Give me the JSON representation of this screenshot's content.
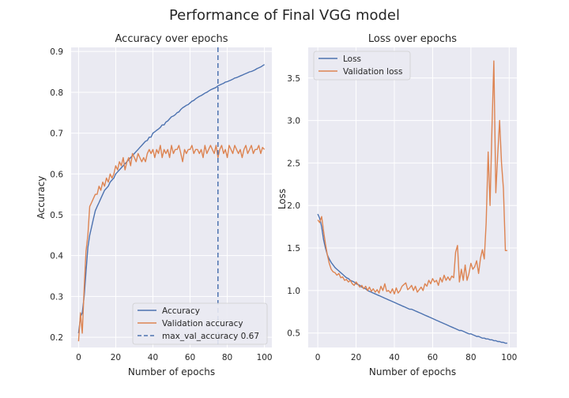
{
  "figure": {
    "title": "Performance of Final VGG model"
  },
  "colors": {
    "axes_bg": "#eaeaf2",
    "grid": "#ffffff",
    "blue": "#4c72b0",
    "orange": "#dd8452",
    "text": "#262626"
  },
  "chart_data": [
    {
      "type": "line",
      "title": "Accuracy over epochs",
      "xlabel": "Number of epochs",
      "ylabel": "Accuracy",
      "xlim": [
        -4,
        104
      ],
      "ylim": [
        0.175,
        0.91
      ],
      "xticks": [
        0,
        20,
        40,
        60,
        80,
        100
      ],
      "yticks": [
        0.2,
        0.3,
        0.4,
        0.5,
        0.6,
        0.7,
        0.8,
        0.9
      ],
      "ytick_labels": [
        "0.2",
        "0.3",
        "0.4",
        "0.5",
        "0.6",
        "0.7",
        "0.8",
        "0.9"
      ],
      "grid": true,
      "legend_position": "lower-right",
      "series": [
        {
          "name": "Accuracy",
          "color": "#4c72b0",
          "x": [
            0,
            1,
            2,
            3,
            4,
            5,
            6,
            7,
            8,
            9,
            10,
            11,
            12,
            13,
            14,
            15,
            16,
            17,
            18,
            19,
            20,
            21,
            22,
            23,
            24,
            25,
            26,
            27,
            28,
            29,
            30,
            31,
            32,
            33,
            34,
            35,
            36,
            37,
            38,
            39,
            40,
            41,
            42,
            43,
            44,
            45,
            46,
            47,
            48,
            49,
            50,
            51,
            52,
            53,
            54,
            55,
            56,
            57,
            58,
            59,
            60,
            61,
            62,
            63,
            64,
            65,
            66,
            67,
            68,
            69,
            70,
            71,
            72,
            73,
            74,
            75,
            76,
            77,
            78,
            79,
            80,
            81,
            82,
            83,
            84,
            85,
            86,
            87,
            88,
            89,
            90,
            91,
            92,
            93,
            94,
            95,
            96,
            97,
            98,
            99,
            100
          ],
          "y": [
            0.21,
            0.25,
            0.26,
            0.3,
            0.36,
            0.42,
            0.45,
            0.47,
            0.49,
            0.51,
            0.52,
            0.53,
            0.54,
            0.55,
            0.56,
            0.565,
            0.57,
            0.58,
            0.585,
            0.59,
            0.6,
            0.605,
            0.61,
            0.615,
            0.62,
            0.625,
            0.63,
            0.635,
            0.64,
            0.645,
            0.65,
            0.655,
            0.66,
            0.665,
            0.67,
            0.675,
            0.68,
            0.682,
            0.69,
            0.69,
            0.7,
            0.703,
            0.707,
            0.71,
            0.714,
            0.72,
            0.72,
            0.727,
            0.73,
            0.735,
            0.74,
            0.742,
            0.745,
            0.75,
            0.752,
            0.758,
            0.762,
            0.765,
            0.768,
            0.77,
            0.774,
            0.778,
            0.78,
            0.784,
            0.787,
            0.79,
            0.792,
            0.795,
            0.798,
            0.8,
            0.803,
            0.806,
            0.808,
            0.81,
            0.812,
            0.816,
            0.818,
            0.82,
            0.822,
            0.825,
            0.826,
            0.828,
            0.83,
            0.832,
            0.835,
            0.836,
            0.838,
            0.84,
            0.842,
            0.844,
            0.846,
            0.848,
            0.85,
            0.851,
            0.853,
            0.855,
            0.858,
            0.86,
            0.862,
            0.865,
            0.868
          ]
        },
        {
          "name": "Validation accuracy",
          "color": "#dd8452",
          "x": [
            0,
            1,
            2,
            3,
            4,
            5,
            6,
            7,
            8,
            9,
            10,
            11,
            12,
            13,
            14,
            15,
            16,
            17,
            18,
            19,
            20,
            21,
            22,
            23,
            24,
            25,
            26,
            27,
            28,
            29,
            30,
            31,
            32,
            33,
            34,
            35,
            36,
            37,
            38,
            39,
            40,
            41,
            42,
            43,
            44,
            45,
            46,
            47,
            48,
            49,
            50,
            51,
            52,
            53,
            54,
            55,
            56,
            57,
            58,
            59,
            60,
            61,
            62,
            63,
            64,
            65,
            66,
            67,
            68,
            69,
            70,
            71,
            72,
            73,
            74,
            75,
            76,
            77,
            78,
            79,
            80,
            81,
            82,
            83,
            84,
            85,
            86,
            87,
            88,
            89,
            90,
            91,
            92,
            93,
            94,
            95,
            96,
            97,
            98,
            99,
            100
          ],
          "y": [
            0.19,
            0.26,
            0.21,
            0.32,
            0.41,
            0.45,
            0.52,
            0.53,
            0.54,
            0.55,
            0.55,
            0.57,
            0.56,
            0.58,
            0.57,
            0.59,
            0.58,
            0.6,
            0.59,
            0.6,
            0.62,
            0.61,
            0.63,
            0.62,
            0.64,
            0.61,
            0.63,
            0.64,
            0.62,
            0.65,
            0.64,
            0.63,
            0.65,
            0.64,
            0.63,
            0.64,
            0.63,
            0.65,
            0.66,
            0.65,
            0.66,
            0.64,
            0.66,
            0.65,
            0.67,
            0.64,
            0.66,
            0.65,
            0.66,
            0.64,
            0.67,
            0.65,
            0.66,
            0.66,
            0.67,
            0.65,
            0.63,
            0.66,
            0.65,
            0.66,
            0.66,
            0.67,
            0.65,
            0.66,
            0.66,
            0.65,
            0.66,
            0.64,
            0.67,
            0.65,
            0.66,
            0.67,
            0.66,
            0.65,
            0.67,
            0.64,
            0.66,
            0.67,
            0.65,
            0.66,
            0.64,
            0.67,
            0.66,
            0.65,
            0.67,
            0.66,
            0.65,
            0.66,
            0.64,
            0.66,
            0.67,
            0.65,
            0.66,
            0.67,
            0.65,
            0.66,
            0.66,
            0.67,
            0.65,
            0.665,
            0.66
          ]
        }
      ],
      "vline": {
        "name": "max_val_accuracy 0.67",
        "x": 75,
        "color": "#4c72b0",
        "style": "dashed"
      }
    },
    {
      "type": "line",
      "title": "Loss over epochs",
      "xlabel": "Number of epochs",
      "ylabel": "Loss",
      "xlim": [
        -5,
        104
      ],
      "ylim": [
        0.33,
        3.86
      ],
      "xticks": [
        0,
        20,
        40,
        60,
        80,
        100
      ],
      "yticks": [
        0.5,
        1.0,
        1.5,
        2.0,
        2.5,
        3.0,
        3.5
      ],
      "ytick_labels": [
        "0.5",
        "1.0",
        "1.5",
        "2.0",
        "2.5",
        "3.0",
        "3.5"
      ],
      "grid": true,
      "legend_position": "upper-left",
      "series": [
        {
          "name": "Loss",
          "color": "#4c72b0",
          "x": [
            0,
            1,
            2,
            3,
            4,
            5,
            6,
            7,
            8,
            9,
            10,
            11,
            12,
            13,
            14,
            15,
            16,
            17,
            18,
            19,
            20,
            21,
            22,
            23,
            24,
            25,
            26,
            27,
            28,
            29,
            30,
            31,
            32,
            33,
            34,
            35,
            36,
            37,
            38,
            39,
            40,
            41,
            42,
            43,
            44,
            45,
            46,
            47,
            48,
            49,
            50,
            51,
            52,
            53,
            54,
            55,
            56,
            57,
            58,
            59,
            60,
            61,
            62,
            63,
            64,
            65,
            66,
            67,
            68,
            69,
            70,
            71,
            72,
            73,
            74,
            75,
            76,
            77,
            78,
            79,
            80,
            81,
            82,
            83,
            84,
            85,
            86,
            87,
            88,
            89,
            90,
            91,
            92,
            93,
            94,
            95,
            96,
            97,
            98,
            99
          ],
          "y": [
            1.9,
            1.85,
            1.75,
            1.6,
            1.5,
            1.42,
            1.37,
            1.33,
            1.3,
            1.27,
            1.25,
            1.23,
            1.21,
            1.19,
            1.17,
            1.15,
            1.14,
            1.12,
            1.11,
            1.1,
            1.08,
            1.07,
            1.06,
            1.04,
            1.03,
            1.02,
            1.0,
            0.99,
            0.98,
            0.97,
            0.96,
            0.95,
            0.94,
            0.93,
            0.92,
            0.91,
            0.9,
            0.89,
            0.88,
            0.87,
            0.86,
            0.85,
            0.84,
            0.83,
            0.82,
            0.81,
            0.8,
            0.79,
            0.78,
            0.78,
            0.77,
            0.76,
            0.75,
            0.74,
            0.73,
            0.72,
            0.71,
            0.7,
            0.69,
            0.68,
            0.67,
            0.66,
            0.65,
            0.64,
            0.63,
            0.62,
            0.61,
            0.6,
            0.59,
            0.58,
            0.57,
            0.56,
            0.55,
            0.54,
            0.53,
            0.53,
            0.52,
            0.51,
            0.5,
            0.49,
            0.49,
            0.48,
            0.47,
            0.46,
            0.46,
            0.45,
            0.44,
            0.44,
            0.43,
            0.43,
            0.42,
            0.42,
            0.41,
            0.41,
            0.4,
            0.4,
            0.39,
            0.39,
            0.38,
            0.38
          ]
        },
        {
          "name": "Validation loss",
          "color": "#dd8452",
          "x": [
            0,
            1,
            2,
            3,
            4,
            5,
            6,
            7,
            8,
            9,
            10,
            11,
            12,
            13,
            14,
            15,
            16,
            17,
            18,
            19,
            20,
            21,
            22,
            23,
            24,
            25,
            26,
            27,
            28,
            29,
            30,
            31,
            32,
            33,
            34,
            35,
            36,
            37,
            38,
            39,
            40,
            41,
            42,
            43,
            44,
            45,
            46,
            47,
            48,
            49,
            50,
            51,
            52,
            53,
            54,
            55,
            56,
            57,
            58,
            59,
            60,
            61,
            62,
            63,
            64,
            65,
            66,
            67,
            68,
            69,
            70,
            71,
            72,
            73,
            74,
            75,
            76,
            77,
            78,
            79,
            80,
            81,
            82,
            83,
            84,
            85,
            86,
            87,
            88,
            89,
            90,
            91,
            92,
            93,
            94,
            95,
            96,
            97,
            98,
            99
          ],
          "y": [
            1.83,
            1.8,
            1.87,
            1.7,
            1.55,
            1.42,
            1.32,
            1.25,
            1.22,
            1.21,
            1.18,
            1.2,
            1.15,
            1.16,
            1.12,
            1.13,
            1.1,
            1.12,
            1.08,
            1.06,
            1.1,
            1.07,
            1.04,
            1.06,
            1.02,
            1.05,
            1.0,
            1.04,
            0.99,
            1.02,
            0.98,
            1.01,
            0.97,
            1.05,
            1.0,
            1.08,
            0.99,
            1.0,
            0.97,
            1.02,
            0.96,
            1.03,
            0.97,
            1.0,
            1.05,
            1.07,
            1.09,
            1.01,
            1.03,
            1.06,
            1.0,
            1.05,
            0.98,
            1.01,
            1.04,
            1.0,
            1.08,
            1.05,
            1.12,
            1.08,
            1.14,
            1.1,
            1.12,
            1.06,
            1.15,
            1.1,
            1.18,
            1.12,
            1.16,
            1.12,
            1.17,
            1.15,
            1.45,
            1.53,
            1.1,
            1.25,
            1.12,
            1.3,
            1.12,
            1.2,
            1.32,
            1.25,
            1.28,
            1.35,
            1.2,
            1.38,
            1.48,
            1.37,
            1.8,
            2.63,
            2.0,
            2.9,
            3.7,
            2.15,
            2.6,
            3.0,
            2.5,
            2.2,
            1.47,
            1.47
          ]
        }
      ]
    }
  ]
}
